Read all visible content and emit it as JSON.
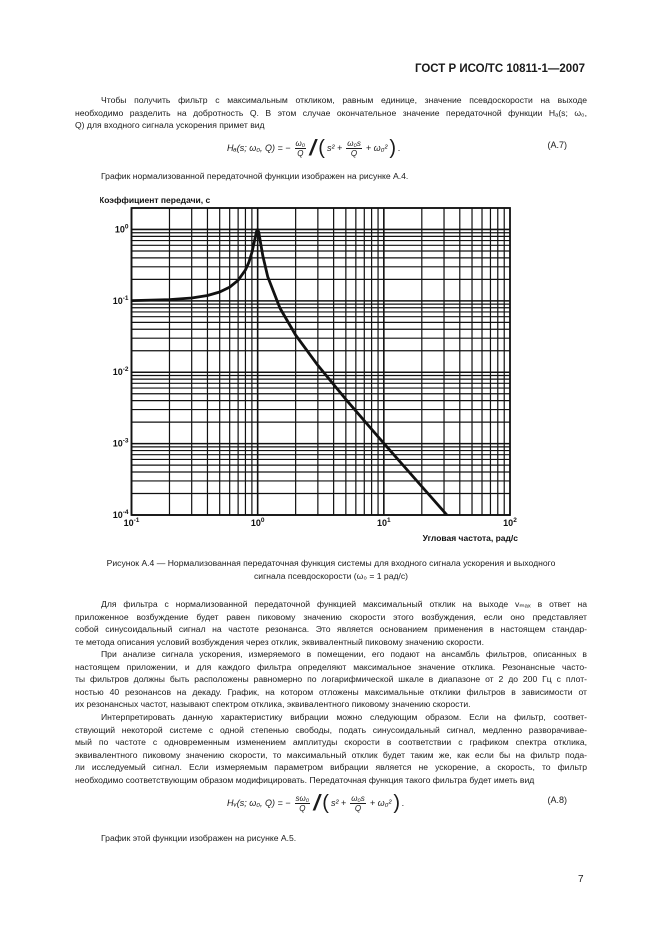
{
  "header": {
    "doc_id": "ГОСТ Р ИСО/ТС 10811-1—2007"
  },
  "para1": [
    "Чтобы получить фильтр с максимальным откликом, равным единице, значение псевдоскорости на выходе",
    "необходимо разделить на добротность Q. В этом случае окончательное значение передаточной функции Hₐ(s; ω₀,",
    "Q) для входного сигнала ускорения примет вид"
  ],
  "formula_a7": {
    "lhs": "Hₐ(s; ω₀, Q) = −",
    "num": "ω₀",
    "den": "Q",
    "s2": "s² +",
    "mid_num": "ω₀s",
    "mid_den": "Q",
    "tail": "+ ω₀²",
    "end": ".",
    "number": "(A.7)"
  },
  "para_fig_ref": "График нормализованной передаточной функции изображен на рисунке А.4.",
  "chart_data": {
    "type": "line",
    "title": "",
    "ylabel": "Коэффициент передачи, с",
    "xlabel": "Угловая частота, рад/с",
    "xscale": "log",
    "yscale": "log",
    "xlim": [
      0.1,
      100
    ],
    "ylim": [
      0.0001,
      2
    ],
    "grid": true,
    "xticks": [
      {
        "value": 0.1,
        "base": "10",
        "exp": "-1"
      },
      {
        "value": 1,
        "base": "10",
        "exp": "0"
      },
      {
        "value": 10,
        "base": "10",
        "exp": "1"
      },
      {
        "value": 100,
        "base": "10",
        "exp": "2"
      }
    ],
    "yticks": [
      {
        "value": 1,
        "base": "10",
        "exp": "0"
      },
      {
        "value": 0.1,
        "base": "10",
        "exp": "-1"
      },
      {
        "value": 0.01,
        "base": "10",
        "exp": "-2"
      },
      {
        "value": 0.001,
        "base": "10",
        "exp": "-3"
      },
      {
        "value": 0.0001,
        "base": "10",
        "exp": "-4"
      }
    ],
    "series": [
      {
        "x": [
          0.1,
          0.2,
          0.3,
          0.4,
          0.5,
          0.6,
          0.7,
          0.8,
          0.85,
          0.9,
          0.95,
          0.98,
          1.0,
          1.02,
          1.05,
          1.1,
          1.2,
          1.5,
          2,
          3,
          5,
          10,
          20,
          31.6
        ],
        "y": [
          0.101,
          0.104,
          0.1098,
          0.119,
          0.133,
          0.156,
          0.194,
          0.271,
          0.345,
          0.476,
          0.735,
          0.946,
          1.0,
          0.912,
          0.682,
          0.422,
          0.219,
          0.0794,
          0.0333,
          0.01249,
          0.004166,
          0.00101,
          0.000251,
          0.0001
        ]
      }
    ],
    "colors": {
      "line": "#111111",
      "grid": "#111111"
    }
  },
  "caption": [
    "Рисунок А.4 — Нормализованная передаточная функция системы для входного сигнала ускорения и выходного",
    "сигнала псевдоскорости (ω₀  = 1 рад/с)"
  ],
  "para2": [
    "Для фильтра с нормализованной передаточной функцией максимальный отклик на выходе vₘₐₓ в ответ на",
    "приложенное возбуждение будет равен пиковому значению скорости этого возбуждения, если оно представляет",
    "собой синусоидальный сигнал на частоте резонанса. Это является основанием применения в настоящем стандар-",
    "те метода описания условий возбуждения через отклик, эквивалентный пиковому значению скорости."
  ],
  "para3": [
    "При анализе сигнала ускорения, измеряемого в помещении, его подают на ансамбль фильтров, описанных в",
    "настоящем приложении, и для каждого фильтра определяют максимальное значение отклика. Резонансные часто-",
    "ты фильтров должны быть расположены равномерно по логарифмической шкале в диапазоне от 2 до 200 Гц с плот-",
    "ностью 40 резонансов на декаду. График, на котором отложены максимальные отклики фильтров в зависимости от",
    "их резонансных частот, называют спектром отклика, эквивалентного пиковому значению скорости."
  ],
  "para4": [
    "Интерпретировать данную характеристику вибрации можно следующим образом. Если на фильтр, соответ-",
    "ствующий некоторой системе с одной степенью свободы, подать синусоидальный сигнал, медленно разворачивае-",
    "мый по частоте с одновременным изменением амплитуды скорости в соответствии с графиком спектра отклика,",
    "эквивалентного пиковому значению скорости, то максимальный отклик будет таким же, как если бы на фильтр пода-",
    "ли исследуемый сигнал. Если измеряемым параметром вибрации является не ускорение, а скорость, то фильтр",
    "необходимо соответствующим образом модифицировать. Передаточная функция такого фильтра будет иметь вид"
  ],
  "formula_a8": {
    "lhs": "Hᵥ(s; ω₀, Q) = −",
    "num": "sω₀",
    "den": "Q",
    "s2": "s² +",
    "mid_num": "ω₀s",
    "mid_den": "Q",
    "tail": "+ ω₀²",
    "end": ".",
    "number": "(A.8)"
  },
  "para_fig5_ref": "График этой функции изображен на рисунке А.5.",
  "page_number": "7"
}
